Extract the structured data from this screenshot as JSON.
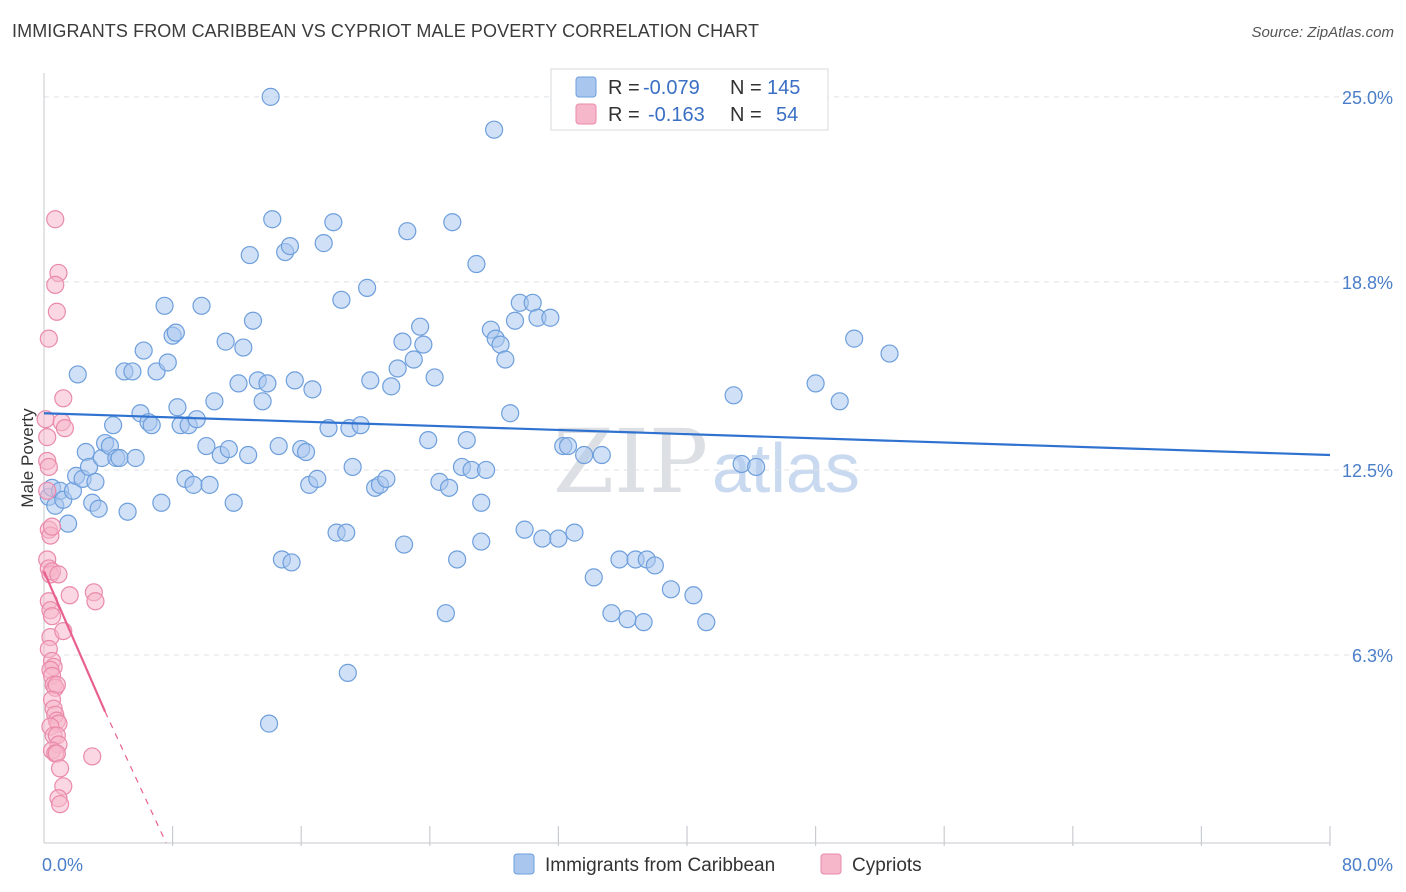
{
  "title": "IMMIGRANTS FROM CARIBBEAN VS CYPRIOT MALE POVERTY CORRELATION CHART",
  "source": "Source: ZipAtlas.com",
  "watermark": {
    "zip": "ZIP",
    "atlas": "atlas"
  },
  "colors": {
    "blue_fill": "#a9c7ee",
    "blue_stroke": "#6e9fdc",
    "blue_line": "#2f72d0",
    "pink_fill": "#f6b7cb",
    "pink_stroke": "#ea8aab",
    "pink_line": "#e8608f",
    "grid": "#dfe1e5",
    "axis_label": "#4a7ec8"
  },
  "chart_data": {
    "type": "scatter",
    "title": "IMMIGRANTS FROM CARIBBEAN VS CYPRIOT MALE POVERTY CORRELATION CHART",
    "xlabel": "",
    "ylabel": "Male Poverty",
    "xlim": [
      0,
      80
    ],
    "ylim": [
      0,
      25.8
    ],
    "x_tick_labels": [
      "0.0%",
      "80.0%"
    ],
    "y_ticks": [
      6.3,
      12.5,
      18.8,
      25.0
    ],
    "y_tick_labels": [
      "6.3%",
      "12.5%",
      "18.8%",
      "25.0%"
    ],
    "legend": [
      {
        "name": "Immigrants from Caribbean",
        "r_label": "R =",
        "r": "-0.079",
        "n_label": "N =",
        "n": "145"
      },
      {
        "name": "Cypriots",
        "r_label": "R =",
        "r": "-0.163",
        "n_label": "N =",
        "n": "54"
      }
    ],
    "series": [
      {
        "name": "Immigrants from Caribbean",
        "trend": {
          "x0": 0,
          "y0": 14.4,
          "x1": 80,
          "y1": 13.0,
          "dashed_to": null
        },
        "points": [
          [
            0.3,
            11.6
          ],
          [
            0.5,
            11.9
          ],
          [
            0.7,
            11.3
          ],
          [
            1.0,
            11.8
          ],
          [
            1.2,
            11.5
          ],
          [
            1.5,
            10.7
          ],
          [
            1.8,
            11.8
          ],
          [
            2.0,
            12.3
          ],
          [
            2.1,
            15.7
          ],
          [
            2.4,
            12.2
          ],
          [
            2.6,
            13.1
          ],
          [
            2.8,
            12.6
          ],
          [
            3.0,
            11.4
          ],
          [
            3.2,
            12.1
          ],
          [
            3.4,
            11.2
          ],
          [
            3.6,
            12.9
          ],
          [
            3.8,
            13.4
          ],
          [
            4.1,
            13.3
          ],
          [
            4.3,
            14.0
          ],
          [
            4.5,
            12.9
          ],
          [
            4.7,
            12.9
          ],
          [
            5.0,
            15.8
          ],
          [
            5.2,
            11.1
          ],
          [
            5.5,
            15.8
          ],
          [
            5.7,
            12.9
          ],
          [
            6.0,
            14.4
          ],
          [
            6.2,
            16.5
          ],
          [
            6.5,
            14.1
          ],
          [
            6.7,
            14.0
          ],
          [
            7.0,
            15.8
          ],
          [
            7.3,
            11.4
          ],
          [
            7.5,
            18.0
          ],
          [
            7.7,
            16.1
          ],
          [
            8.0,
            17.0
          ],
          [
            8.2,
            17.1
          ],
          [
            8.5,
            14.0
          ],
          [
            8.8,
            12.2
          ],
          [
            9.0,
            14.0
          ],
          [
            9.3,
            12.0
          ],
          [
            9.5,
            14.2
          ],
          [
            9.8,
            18.0
          ],
          [
            10.1,
            13.3
          ],
          [
            10.3,
            12.0
          ],
          [
            10.6,
            14.8
          ],
          [
            11.0,
            13.0
          ],
          [
            11.3,
            16.8
          ],
          [
            11.5,
            13.2
          ],
          [
            11.8,
            11.4
          ],
          [
            12.1,
            15.4
          ],
          [
            12.4,
            16.6
          ],
          [
            12.8,
            19.7
          ],
          [
            13.0,
            17.5
          ],
          [
            13.3,
            15.5
          ],
          [
            13.6,
            14.8
          ],
          [
            13.9,
            15.4
          ],
          [
            14.2,
            20.9
          ],
          [
            14.6,
            13.3
          ],
          [
            14.8,
            9.5
          ],
          [
            15.0,
            19.8
          ],
          [
            15.3,
            20.0
          ],
          [
            15.6,
            15.5
          ],
          [
            16.0,
            13.2
          ],
          [
            16.3,
            13.1
          ],
          [
            16.5,
            12.0
          ],
          [
            16.7,
            15.2
          ],
          [
            17.0,
            12.2
          ],
          [
            17.4,
            20.1
          ],
          [
            17.7,
            13.9
          ],
          [
            18.0,
            20.8
          ],
          [
            18.2,
            10.4
          ],
          [
            18.5,
            18.2
          ],
          [
            18.8,
            10.4
          ],
          [
            19.0,
            13.9
          ],
          [
            19.2,
            12.6
          ],
          [
            19.7,
            14.0
          ],
          [
            20.1,
            18.6
          ],
          [
            20.3,
            15.5
          ],
          [
            20.6,
            11.9
          ],
          [
            20.9,
            12.0
          ],
          [
            21.3,
            12.2
          ],
          [
            21.6,
            15.3
          ],
          [
            22.0,
            15.9
          ],
          [
            22.3,
            16.8
          ],
          [
            22.6,
            20.5
          ],
          [
            23.0,
            16.2
          ],
          [
            23.4,
            17.3
          ],
          [
            23.6,
            16.7
          ],
          [
            23.9,
            13.5
          ],
          [
            24.3,
            15.6
          ],
          [
            24.6,
            12.1
          ],
          [
            25.0,
            7.7
          ],
          [
            25.4,
            20.8
          ],
          [
            25.7,
            9.5
          ],
          [
            26.0,
            12.6
          ],
          [
            26.3,
            13.5
          ],
          [
            26.6,
            12.5
          ],
          [
            26.9,
            19.4
          ],
          [
            27.2,
            11.4
          ],
          [
            27.5,
            12.5
          ],
          [
            27.8,
            17.2
          ],
          [
            28.1,
            16.9
          ],
          [
            28.4,
            16.7
          ],
          [
            28.7,
            16.2
          ],
          [
            29.0,
            14.4
          ],
          [
            29.3,
            17.5
          ],
          [
            29.6,
            18.1
          ],
          [
            29.9,
            10.5
          ],
          [
            30.4,
            18.1
          ],
          [
            30.7,
            17.6
          ],
          [
            31.0,
            10.2
          ],
          [
            31.5,
            17.6
          ],
          [
            32.0,
            10.2
          ],
          [
            32.3,
            13.3
          ],
          [
            32.6,
            13.3
          ],
          [
            33.0,
            10.4
          ],
          [
            33.6,
            13.0
          ],
          [
            34.2,
            8.9
          ],
          [
            34.7,
            13.0
          ],
          [
            35.3,
            7.7
          ],
          [
            35.8,
            9.5
          ],
          [
            36.3,
            7.5
          ],
          [
            36.8,
            9.5
          ],
          [
            37.3,
            7.4
          ],
          [
            37.5,
            9.5
          ],
          [
            38.0,
            9.3
          ],
          [
            39.0,
            8.5
          ],
          [
            40.4,
            8.3
          ],
          [
            41.2,
            7.4
          ],
          [
            42.9,
            15.0
          ],
          [
            43.4,
            12.7
          ],
          [
            44.3,
            12.6
          ],
          [
            48.0,
            15.4
          ],
          [
            49.5,
            14.8
          ],
          [
            50.4,
            16.9
          ],
          [
            52.6,
            16.4
          ],
          [
            25.2,
            11.9
          ],
          [
            18.9,
            5.7
          ],
          [
            14.0,
            4.0
          ],
          [
            14.1,
            25.0
          ],
          [
            28.0,
            23.9
          ],
          [
            22.4,
            10.0
          ],
          [
            12.7,
            13.0
          ],
          [
            8.3,
            14.6
          ],
          [
            15.4,
            9.4
          ],
          [
            27.2,
            10.1
          ]
        ]
      },
      {
        "name": "Cypriots",
        "trend": {
          "x0": 0,
          "y0": 9.1,
          "x1": 3.8,
          "y1": 4.4,
          "dashed_to": [
            7.6,
            0.0
          ]
        },
        "points": [
          [
            0.1,
            14.2
          ],
          [
            0.2,
            13.6
          ],
          [
            0.2,
            12.8
          ],
          [
            0.3,
            12.6
          ],
          [
            0.2,
            11.8
          ],
          [
            0.3,
            10.5
          ],
          [
            0.4,
            10.3
          ],
          [
            0.2,
            9.5
          ],
          [
            0.3,
            9.2
          ],
          [
            0.4,
            9.0
          ],
          [
            0.5,
            9.1
          ],
          [
            0.3,
            8.1
          ],
          [
            0.4,
            7.8
          ],
          [
            0.5,
            7.6
          ],
          [
            0.4,
            6.9
          ],
          [
            0.3,
            6.5
          ],
          [
            0.5,
            6.1
          ],
          [
            0.6,
            5.9
          ],
          [
            0.4,
            5.8
          ],
          [
            0.5,
            5.6
          ],
          [
            0.6,
            5.3
          ],
          [
            0.7,
            5.2
          ],
          [
            0.8,
            5.3
          ],
          [
            0.5,
            4.8
          ],
          [
            0.6,
            4.5
          ],
          [
            0.7,
            4.3
          ],
          [
            0.8,
            4.1
          ],
          [
            0.9,
            4.0
          ],
          [
            0.4,
            3.9
          ],
          [
            0.6,
            3.6
          ],
          [
            0.8,
            3.6
          ],
          [
            0.9,
            3.3
          ],
          [
            0.5,
            3.1
          ],
          [
            0.7,
            3.0
          ],
          [
            0.8,
            3.0
          ],
          [
            1.0,
            2.5
          ],
          [
            1.2,
            1.9
          ],
          [
            0.9,
            1.5
          ],
          [
            1.0,
            1.3
          ],
          [
            0.7,
            20.9
          ],
          [
            0.9,
            19.1
          ],
          [
            0.7,
            18.7
          ],
          [
            0.8,
            17.8
          ],
          [
            0.3,
            16.9
          ],
          [
            1.2,
            14.9
          ],
          [
            1.1,
            14.1
          ],
          [
            1.3,
            13.9
          ],
          [
            1.6,
            8.3
          ],
          [
            3.1,
            8.4
          ],
          [
            3.2,
            8.1
          ],
          [
            3.0,
            2.9
          ],
          [
            1.2,
            7.1
          ],
          [
            0.9,
            9.0
          ],
          [
            0.5,
            10.6
          ]
        ]
      }
    ]
  }
}
